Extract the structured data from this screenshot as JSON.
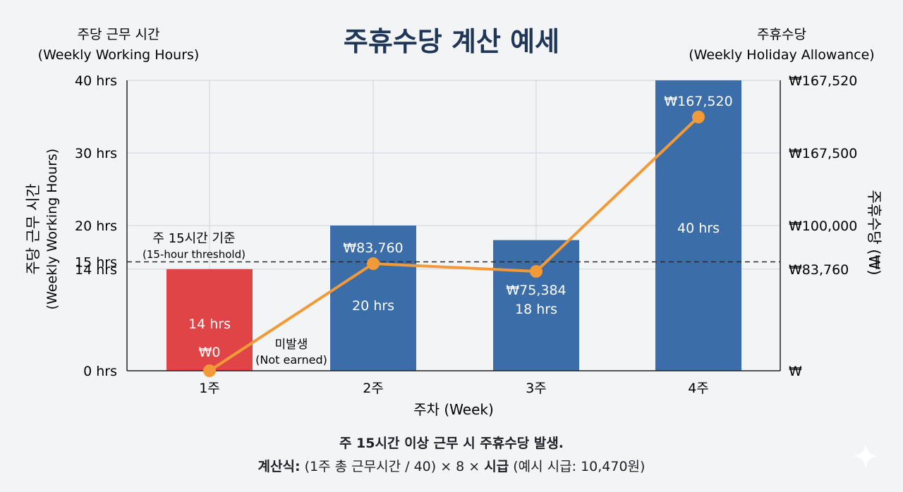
{
  "chart_data": {
    "type": "bar+line",
    "title": "주휴수당 계산 예세",
    "left_axis_title": [
      "주당 근무 시간",
      "(Weekly Working Hours)"
    ],
    "right_axis_title": [
      "주휴수당",
      "(Weekly Holiday Allowance)"
    ],
    "left_vertical_label": [
      "주당 근무 시간",
      "(Weekly Working Hours)"
    ],
    "right_vertical_label": "주휴수당 (₩)",
    "xlabel": "주차 (Week)",
    "categories": [
      "1주",
      "2주",
      "3주",
      "4주"
    ],
    "left_ticks": [
      {
        "value": 0,
        "label": "0 hrs"
      },
      {
        "value": 14,
        "label": "14 hrs"
      },
      {
        "value": 15,
        "label": "15 hrs"
      },
      {
        "value": 20,
        "label": "20 hrs"
      },
      {
        "value": 30,
        "label": "30 hrs"
      },
      {
        "value": 40,
        "label": "40 hrs"
      }
    ],
    "right_tick_labels": [
      "₩",
      "₩83,760",
      "₩100,000",
      "₩167,500",
      "₩167,520"
    ],
    "ylim": [
      0,
      40
    ],
    "threshold": {
      "value": 15,
      "label": "주 15시간 기준",
      "sublabel": "(15-hour threshold)"
    },
    "bars": {
      "name": "주당 근무 시간",
      "values": [
        14,
        20,
        18,
        40
      ],
      "labels": [
        "14 hrs",
        "20 hrs",
        "18 hrs",
        "40 hrs"
      ],
      "colors": [
        "#e04446",
        "#3b6ea8",
        "#3b6ea8",
        "#3b6ea8"
      ]
    },
    "line": {
      "name": "주휴수당",
      "color": "#f29a38",
      "values": [
        0,
        83760,
        75384,
        167520
      ],
      "labels": [
        "₩0",
        "₩83,760",
        "₩75,384",
        "₩167,520"
      ]
    },
    "note": {
      "line1": "미발생",
      "line2": "(Not earned)"
    },
    "grid": true
  },
  "footer": {
    "line1": "주 15시간 이상 근무 시 주휴수당 발생.",
    "formula_prefix": "계산식:",
    "formula_middle": " (1주 총 근무시간 / 40) × 8 × ",
    "formula_bold": "시급",
    "formula_suffix": " (예시 시급: 10,470원)"
  },
  "colors": {
    "background": "#f2f4f6",
    "title": "#1f3656",
    "grid": "#cfd4d9"
  }
}
